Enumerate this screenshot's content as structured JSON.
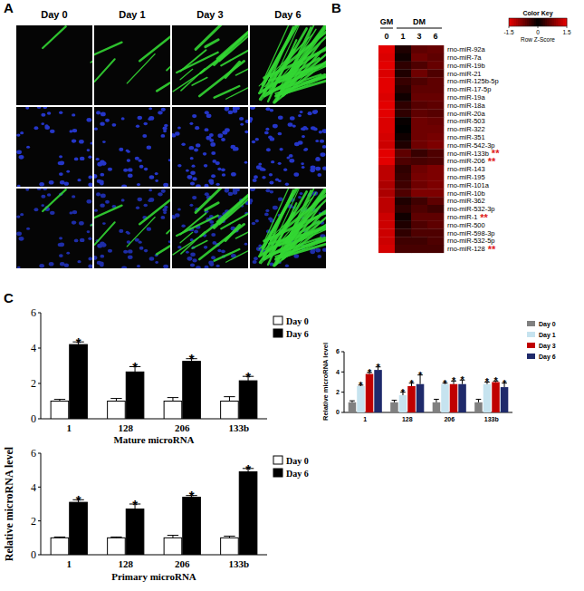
{
  "image_panel": {
    "label": "A",
    "columns": [
      "Day 0",
      "Day 1",
      "Day 3",
      "Day 6"
    ]
  },
  "chart_data": [
    {
      "type": "heatmap",
      "panel": "B",
      "categories": [
        "0",
        "1",
        "3",
        "6"
      ],
      "column_groups": [
        {
          "label": "GM",
          "count": 1
        },
        {
          "label": "DM",
          "count": 3
        }
      ],
      "rows": [
        "rno-miR-92a",
        "rno-miR-7a",
        "rno-miR-19b",
        "rno-miR-21",
        "rno-miR-125b-5p",
        "rno-miR-17-5p",
        "rno-miR-19a",
        "rno-miR-18a",
        "rno-miR-20a",
        "rno-miR-503",
        "rno-miR-322",
        "rno-miR-351",
        "rno-miR-542-3p",
        "rno-miR-133b",
        "rno-miR-206",
        "rno-miR-143",
        "rno-miR-195",
        "rno-miR-101a",
        "rno-miR-10b",
        "rno-miR-362",
        "rno-miR-532-3p",
        "rno-miR-1",
        "rno-miR-500",
        "rno-miR-598-3p",
        "rno-miR-532-5p",
        "rno-miR-128"
      ],
      "row_annotations": [
        null,
        null,
        null,
        null,
        null,
        null,
        null,
        null,
        null,
        null,
        null,
        null,
        null,
        "**",
        "**",
        null,
        null,
        null,
        null,
        null,
        null,
        "**",
        null,
        null,
        null,
        "**"
      ],
      "cells": [
        [
          1.45,
          -0.2,
          -0.6,
          -0.65
        ],
        [
          1.4,
          -0.1,
          -0.7,
          -0.6
        ],
        [
          1.45,
          -0.3,
          -0.5,
          -0.65
        ],
        [
          1.4,
          -0.2,
          -0.7,
          -0.5
        ],
        [
          1.45,
          -0.35,
          -0.5,
          -0.6
        ],
        [
          1.45,
          -0.25,
          -0.6,
          -0.6
        ],
        [
          1.4,
          -0.1,
          -0.65,
          -0.65
        ],
        [
          1.45,
          -0.3,
          -0.55,
          -0.6
        ],
        [
          1.45,
          -0.3,
          -0.6,
          -0.55
        ],
        [
          1.4,
          -0.05,
          -0.7,
          -0.65
        ],
        [
          1.4,
          0.0,
          -0.7,
          -0.7
        ],
        [
          1.35,
          0.1,
          -0.7,
          -0.75
        ],
        [
          1.3,
          0.2,
          -0.7,
          -0.8
        ],
        [
          -1.45,
          0.6,
          0.35,
          0.5
        ],
        [
          -1.45,
          0.5,
          0.45,
          0.5
        ],
        [
          -1.2,
          -0.3,
          0.7,
          0.8
        ],
        [
          -1.2,
          -0.35,
          0.75,
          0.8
        ],
        [
          -1.1,
          -0.4,
          0.7,
          0.8
        ],
        [
          -1.1,
          -0.5,
          0.8,
          0.8
        ],
        [
          -1.2,
          0.2,
          0.4,
          0.6
        ],
        [
          -1.2,
          0.3,
          0.5,
          0.4
        ],
        [
          -1.3,
          0.1,
          0.6,
          0.6
        ],
        [
          -1.3,
          0.2,
          0.5,
          0.6
        ],
        [
          -1.3,
          0.3,
          0.5,
          0.5
        ],
        [
          -1.3,
          0.4,
          0.4,
          0.5
        ],
        [
          -1.35,
          0.45,
          0.45,
          0.45
        ]
      ],
      "color_range": [
        -1.5,
        1.5
      ],
      "color_ticks": [
        -1.5,
        0,
        1.5
      ],
      "colorbar_title": "Color Key",
      "colorbar_label": "Row Z-Score"
    },
    {
      "type": "bar",
      "ylabel": "Relative microRNA level",
      "categories": [
        "1",
        "128",
        "206",
        "133b"
      ],
      "ylim": [
        0,
        6
      ],
      "yticks": [
        0,
        2,
        4,
        6
      ],
      "grid": false,
      "legend": "right",
      "series": [
        {
          "name": "Day 0",
          "color": "#808080",
          "values": [
            1,
            1,
            1,
            1
          ],
          "errors": [
            0.15,
            0.2,
            0.3,
            0.3
          ]
        },
        {
          "name": "Day 1",
          "color": "#c6e3ef",
          "values": [
            2.6,
            1.7,
            2.8,
            2.8
          ],
          "errors": [
            0.1,
            0.3,
            0.1,
            0.2
          ],
          "annotations": [
            "*",
            "*",
            "*",
            "*"
          ]
        },
        {
          "name": "Day 3",
          "color": "#c00000",
          "values": [
            3.8,
            2.6,
            2.8,
            3.0
          ],
          "errors": [
            0.15,
            0.3,
            0.3,
            0.1
          ],
          "annotations": [
            "*",
            "*",
            "*",
            "*"
          ]
        },
        {
          "name": "Day 6",
          "color": "#1f2a6b",
          "values": [
            4.2,
            2.8,
            2.8,
            2.5
          ],
          "errors": [
            0.3,
            0.9,
            0.4,
            0.4
          ],
          "annotations": [
            "*",
            "*",
            "*",
            "*"
          ]
        }
      ]
    },
    {
      "type": "bar",
      "panel": "C",
      "xlabel": "Mature microRNA",
      "categories": [
        "1",
        "128",
        "206",
        "133b"
      ],
      "ylim": [
        0,
        6
      ],
      "yticks": [
        0,
        2,
        4,
        6
      ],
      "grid": false,
      "legend": "right",
      "series": [
        {
          "name": "Day 0",
          "color": "#ffffff",
          "values": [
            1,
            1,
            1,
            1
          ],
          "errors": [
            0.1,
            0.15,
            0.2,
            0.25
          ]
        },
        {
          "name": "Day 6",
          "color": "#000000",
          "values": [
            4.2,
            2.65,
            3.25,
            2.15
          ],
          "errors": [
            0.15,
            0.3,
            0.15,
            0.25
          ],
          "annotations": [
            "*",
            "*",
            "*",
            "*"
          ]
        }
      ]
    },
    {
      "type": "bar",
      "xlabel": "Primary microRNA",
      "ylabel": "Relative microRNA level",
      "categories": [
        "1",
        "128",
        "206",
        "133b"
      ],
      "ylim": [
        0,
        6
      ],
      "yticks": [
        0,
        2,
        4,
        6
      ],
      "grid": false,
      "legend": "right",
      "series": [
        {
          "name": "Day 0",
          "color": "#ffffff",
          "values": [
            1,
            1,
            1,
            1
          ],
          "errors": [
            0.05,
            0.05,
            0.15,
            0.1
          ]
        },
        {
          "name": "Day 6",
          "color": "#000000",
          "values": [
            3.1,
            2.7,
            3.4,
            4.9
          ],
          "errors": [
            0.15,
            0.3,
            0.1,
            0.2
          ],
          "annotations": [
            "*",
            "*",
            "*",
            "*"
          ]
        }
      ]
    }
  ]
}
